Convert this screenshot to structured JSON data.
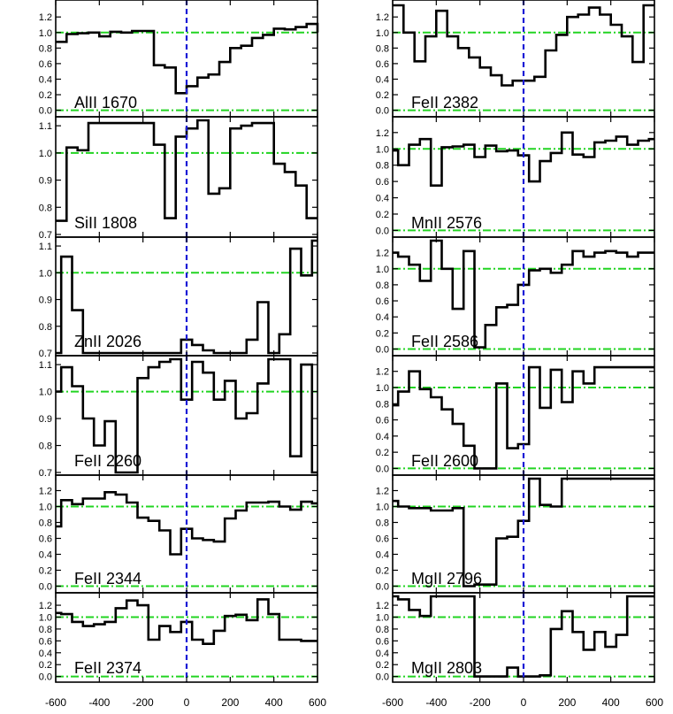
{
  "chart_data": {
    "type": "line",
    "subtype": "step",
    "xlim": [
      -600,
      600
    ],
    "x_ticks": [
      "-600",
      "-400",
      "-200",
      "0",
      "200",
      "400",
      "600"
    ],
    "continuum_level": [
      1.0,
      0.0
    ],
    "zero_velocity_marker": 0,
    "colors": {
      "flux": "#000000",
      "continuum": "#22d422",
      "zero_line": "#1a1ad6"
    },
    "panels": [
      {
        "column": 0,
        "row": 0,
        "label": "AlII 1670",
        "ylim": [
          -0.05,
          1.35
        ],
        "y_ticks": [
          {
            "v": 1.2,
            "t": "1.2"
          },
          {
            "v": 1.0,
            "t": "1.0"
          },
          {
            "v": 0.8,
            "t": "0.8"
          },
          {
            "v": 0.6,
            "t": "0.6"
          },
          {
            "v": 0.4,
            "t": "0.4"
          },
          {
            "v": 0.2,
            "t": "0.2"
          },
          {
            "v": 0.0,
            "t": "0.0"
          }
        ],
        "x": [
          -600,
          -550,
          -500,
          -450,
          -400,
          -350,
          -300,
          -250,
          -200,
          -150,
          -100,
          -50,
          0,
          50,
          100,
          150,
          200,
          250,
          300,
          350,
          400,
          450,
          500,
          550,
          600
        ],
        "y": [
          0.88,
          0.98,
          0.99,
          1.0,
          0.95,
          1.01,
          1.0,
          1.02,
          1.02,
          0.58,
          0.55,
          0.22,
          0.31,
          0.42,
          0.46,
          0.62,
          0.8,
          0.83,
          0.93,
          0.97,
          1.05,
          1.04,
          1.07,
          1.11,
          1.0
        ]
      },
      {
        "column": 0,
        "row": 1,
        "label": "SiII 1808",
        "ylim": [
          0.7,
          1.12
        ],
        "y_ticks": [
          {
            "v": 1.1,
            "t": "1.1"
          },
          {
            "v": 1.0,
            "t": "1.0"
          },
          {
            "v": 0.9,
            "t": "0.9"
          },
          {
            "v": 0.8,
            "t": "0.8"
          },
          {
            "v": 0.7,
            "t": "0.7"
          }
        ],
        "x": [
          -600,
          -575,
          -550,
          -500,
          -450,
          -400,
          -350,
          -300,
          -250,
          -200,
          -150,
          -100,
          -50,
          0,
          50,
          100,
          150,
          200,
          250,
          300,
          350,
          400,
          450,
          500,
          550,
          600
        ],
        "y": [
          0.75,
          0.75,
          1.02,
          1.01,
          1.11,
          1.11,
          1.11,
          1.11,
          1.11,
          1.11,
          1.03,
          0.76,
          1.06,
          1.09,
          1.12,
          0.85,
          0.87,
          1.09,
          1.1,
          1.11,
          1.11,
          0.96,
          0.93,
          0.88,
          0.76,
          0.76
        ]
      },
      {
        "column": 0,
        "row": 2,
        "label": "ZnII 2026",
        "ylim": [
          0.7,
          1.12
        ],
        "y_ticks": [
          {
            "v": 1.1,
            "t": "1.1"
          },
          {
            "v": 1.0,
            "t": "1.0"
          },
          {
            "v": 0.9,
            "t": "0.9"
          },
          {
            "v": 0.8,
            "t": "0.8"
          },
          {
            "v": 0.7,
            "t": "0.7"
          }
        ],
        "x": [
          -600,
          -575,
          -525,
          -475,
          -425,
          -375,
          -325,
          -275,
          -225,
          -175,
          -125,
          -75,
          -25,
          25,
          75,
          125,
          175,
          225,
          275,
          325,
          375,
          425,
          475,
          525,
          575
        ],
        "y": [
          0.7,
          1.06,
          0.86,
          0.7,
          0.7,
          0.7,
          0.7,
          0.7,
          0.7,
          0.7,
          0.7,
          0.7,
          0.75,
          0.73,
          0.71,
          0.7,
          0.7,
          0.7,
          0.75,
          0.89,
          0.7,
          0.77,
          1.09,
          0.99,
          1.12
        ]
      },
      {
        "column": 0,
        "row": 3,
        "label": "FeII 2260",
        "ylim": [
          0.7,
          1.12
        ],
        "y_ticks": [
          {
            "v": 1.1,
            "t": "1.1"
          },
          {
            "v": 1.0,
            "t": "1.0"
          },
          {
            "v": 0.9,
            "t": "0.9"
          },
          {
            "v": 0.8,
            "t": "0.8"
          },
          {
            "v": 0.7,
            "t": "0.7"
          }
        ],
        "x": [
          -600,
          -575,
          -525,
          -475,
          -425,
          -375,
          -325,
          -275,
          -225,
          -175,
          -125,
          -75,
          -25,
          25,
          75,
          125,
          175,
          225,
          275,
          325,
          375,
          425,
          475,
          525,
          575
        ],
        "y": [
          1.0,
          1.09,
          1.02,
          0.9,
          0.8,
          0.89,
          0.7,
          0.7,
          1.05,
          1.09,
          1.11,
          1.12,
          0.97,
          1.11,
          1.07,
          0.97,
          1.04,
          0.9,
          0.92,
          1.03,
          1.12,
          1.12,
          0.76,
          1.1,
          0.7
        ]
      },
      {
        "column": 0,
        "row": 4,
        "label": "FeII 2344",
        "ylim": [
          -0.05,
          1.35
        ],
        "y_ticks": [
          {
            "v": 1.2,
            "t": "1.2"
          },
          {
            "v": 1.0,
            "t": "1.0"
          },
          {
            "v": 0.8,
            "t": "0.8"
          },
          {
            "v": 0.6,
            "t": "0.6"
          },
          {
            "v": 0.4,
            "t": "0.4"
          },
          {
            "v": 0.2,
            "t": "0.2"
          },
          {
            "v": 0.0,
            "t": "0.0"
          }
        ],
        "x": [
          -600,
          -575,
          -525,
          -475,
          -425,
          -375,
          -325,
          -275,
          -225,
          -175,
          -125,
          -75,
          -25,
          25,
          75,
          125,
          175,
          225,
          275,
          325,
          375,
          425,
          475,
          525,
          575
        ],
        "y": [
          0.75,
          1.08,
          1.03,
          1.1,
          1.1,
          1.18,
          1.15,
          1.05,
          0.86,
          0.82,
          0.7,
          0.4,
          0.72,
          0.6,
          0.58,
          0.56,
          0.85,
          0.95,
          1.05,
          1.05,
          1.06,
          1.0,
          0.96,
          1.06,
          1.04
        ]
      },
      {
        "column": 0,
        "row": 5,
        "label": "FeII 2374",
        "ylim": [
          -0.05,
          1.35
        ],
        "y_ticks": [
          {
            "v": 1.2,
            "t": "1.2"
          },
          {
            "v": 1.0,
            "t": "1.0"
          },
          {
            "v": 0.8,
            "t": "0.8"
          },
          {
            "v": 0.6,
            "t": "0.6"
          },
          {
            "v": 0.4,
            "t": "0.4"
          },
          {
            "v": 0.2,
            "t": "0.2"
          },
          {
            "v": 0.0,
            "t": "0.0"
          }
        ],
        "x": [
          -600,
          -575,
          -525,
          -475,
          -425,
          -375,
          -325,
          -275,
          -225,
          -175,
          -125,
          -75,
          -25,
          25,
          75,
          125,
          175,
          225,
          275,
          325,
          375,
          425,
          475,
          525,
          575
        ],
        "y": [
          1.07,
          1.05,
          0.92,
          0.85,
          0.88,
          0.92,
          1.15,
          1.28,
          1.2,
          0.62,
          0.85,
          0.75,
          0.92,
          0.62,
          0.55,
          0.77,
          1.02,
          1.04,
          0.95,
          1.3,
          1.05,
          0.62,
          0.62,
          0.6,
          0.6
        ]
      },
      {
        "column": 1,
        "row": 0,
        "label": "FeII 2382",
        "ylim": [
          -0.05,
          1.35
        ],
        "y_ticks": [
          {
            "v": 1.2,
            "t": "1.2"
          },
          {
            "v": 1.0,
            "t": "1.0"
          },
          {
            "v": 0.8,
            "t": "0.8"
          },
          {
            "v": 0.6,
            "t": "0.6"
          },
          {
            "v": 0.4,
            "t": "0.4"
          },
          {
            "v": 0.2,
            "t": "0.2"
          },
          {
            "v": 0.0,
            "t": "0.0"
          }
        ],
        "x": [
          -600,
          -550,
          -500,
          -450,
          -400,
          -350,
          -300,
          -250,
          -200,
          -150,
          -100,
          -50,
          0,
          50,
          100,
          150,
          200,
          250,
          300,
          350,
          400,
          450,
          500,
          550,
          600
        ],
        "y": [
          1.35,
          1.0,
          0.63,
          0.95,
          1.28,
          0.95,
          0.8,
          0.68,
          0.55,
          0.45,
          0.32,
          0.38,
          0.38,
          0.43,
          0.77,
          0.97,
          1.2,
          1.23,
          1.32,
          1.23,
          1.1,
          0.95,
          0.62,
          1.35,
          1.35
        ]
      },
      {
        "column": 1,
        "row": 1,
        "label": "MnII 2576",
        "ylim": [
          -0.05,
          1.35
        ],
        "y_ticks": [
          {
            "v": 1.2,
            "t": "1.2"
          },
          {
            "v": 1.0,
            "t": "1.0"
          },
          {
            "v": 0.8,
            "t": "0.8"
          },
          {
            "v": 0.6,
            "t": "0.6"
          },
          {
            "v": 0.4,
            "t": "0.4"
          },
          {
            "v": 0.2,
            "t": "0.2"
          },
          {
            "v": 0.0,
            "t": "0.0"
          }
        ],
        "x": [
          -600,
          -575,
          -525,
          -475,
          -425,
          -375,
          -325,
          -275,
          -225,
          -175,
          -125,
          -75,
          -25,
          25,
          75,
          125,
          175,
          225,
          275,
          325,
          375,
          425,
          475,
          525,
          575
        ],
        "y": [
          0.98,
          0.8,
          1.05,
          1.12,
          0.55,
          1.02,
          1.03,
          1.05,
          0.9,
          1.04,
          0.97,
          0.98,
          0.92,
          0.6,
          0.85,
          0.95,
          1.2,
          0.93,
          0.9,
          1.08,
          1.1,
          1.15,
          1.05,
          1.1,
          1.12
        ]
      },
      {
        "column": 1,
        "row": 2,
        "label": "FeII 2586",
        "ylim": [
          -0.05,
          1.35
        ],
        "y_ticks": [
          {
            "v": 1.2,
            "t": "1.2"
          },
          {
            "v": 1.0,
            "t": "1.0"
          },
          {
            "v": 0.8,
            "t": "0.8"
          },
          {
            "v": 0.6,
            "t": "0.6"
          },
          {
            "v": 0.4,
            "t": "0.4"
          },
          {
            "v": 0.2,
            "t": "0.2"
          },
          {
            "v": 0.0,
            "t": "0.0"
          }
        ],
        "x": [
          -600,
          -575,
          -525,
          -475,
          -425,
          -375,
          -325,
          -275,
          -225,
          -175,
          -125,
          -75,
          -25,
          25,
          75,
          125,
          175,
          225,
          275,
          325,
          375,
          425,
          475,
          525,
          575
        ],
        "y": [
          1.2,
          1.15,
          1.05,
          0.85,
          1.35,
          1.0,
          0.5,
          1.22,
          0.02,
          0.3,
          0.52,
          0.55,
          0.8,
          0.98,
          1.0,
          0.95,
          1.05,
          1.22,
          1.15,
          1.2,
          1.22,
          1.2,
          1.15,
          1.2,
          1.2
        ]
      },
      {
        "column": 1,
        "row": 3,
        "label": "FeII 2600",
        "ylim": [
          -0.05,
          1.35
        ],
        "y_ticks": [
          {
            "v": 1.2,
            "t": "1.2"
          },
          {
            "v": 1.0,
            "t": "1.0"
          },
          {
            "v": 0.8,
            "t": "0.8"
          },
          {
            "v": 0.6,
            "t": "0.6"
          },
          {
            "v": 0.4,
            "t": "0.4"
          },
          {
            "v": 0.2,
            "t": "0.2"
          },
          {
            "v": 0.0,
            "t": "0.0"
          }
        ],
        "x": [
          -600,
          -575,
          -525,
          -475,
          -425,
          -375,
          -325,
          -275,
          -225,
          -175,
          -125,
          -75,
          -25,
          25,
          75,
          125,
          175,
          225,
          275,
          325,
          375,
          425,
          475,
          525,
          575
        ],
        "y": [
          0.78,
          0.95,
          1.2,
          0.98,
          0.88,
          0.73,
          0.55,
          0.28,
          0.0,
          0.0,
          1.05,
          0.25,
          0.3,
          1.25,
          0.75,
          1.22,
          0.82,
          1.2,
          1.05,
          1.25,
          1.25,
          1.25,
          1.25,
          1.25,
          1.25
        ]
      },
      {
        "column": 1,
        "row": 4,
        "label": "MgII 2796",
        "ylim": [
          -0.05,
          1.35
        ],
        "y_ticks": [
          {
            "v": 1.2,
            "t": "1.2"
          },
          {
            "v": 1.0,
            "t": "1.0"
          },
          {
            "v": 0.8,
            "t": "0.8"
          },
          {
            "v": 0.6,
            "t": "0.6"
          },
          {
            "v": 0.4,
            "t": "0.4"
          },
          {
            "v": 0.2,
            "t": "0.2"
          },
          {
            "v": 0.0,
            "t": "0.0"
          }
        ],
        "x": [
          -600,
          -575,
          -525,
          -475,
          -425,
          -375,
          -325,
          -275,
          -225,
          -175,
          -125,
          -75,
          -25,
          25,
          75,
          125,
          175,
          225,
          275,
          325,
          375,
          425,
          475,
          525,
          575
        ],
        "y": [
          1.07,
          1.0,
          0.98,
          0.98,
          0.95,
          0.95,
          0.98,
          0.0,
          0.02,
          0.02,
          0.6,
          0.62,
          0.82,
          1.35,
          1.02,
          1.0,
          1.35,
          1.35,
          1.35,
          1.35,
          1.35,
          1.35,
          1.35,
          1.35,
          1.35
        ]
      },
      {
        "column": 1,
        "row": 5,
        "label": "MgII 2803",
        "ylim": [
          -0.05,
          1.35
        ],
        "y_ticks": [
          {
            "v": 1.2,
            "t": "1.2"
          },
          {
            "v": 1.0,
            "t": "1.0"
          },
          {
            "v": 0.8,
            "t": "0.8"
          },
          {
            "v": 0.6,
            "t": "0.6"
          },
          {
            "v": 0.4,
            "t": "0.4"
          },
          {
            "v": 0.2,
            "t": "0.2"
          },
          {
            "v": 0.0,
            "t": "0.0"
          }
        ],
        "x": [
          -600,
          -575,
          -525,
          -475,
          -425,
          -375,
          -325,
          -275,
          -225,
          -175,
          -125,
          -75,
          -25,
          25,
          75,
          125,
          175,
          225,
          275,
          325,
          375,
          425,
          475,
          525,
          575
        ],
        "y": [
          1.35,
          1.3,
          1.12,
          1.02,
          1.35,
          1.35,
          1.35,
          1.35,
          0.0,
          0.0,
          0.0,
          0.15,
          0.0,
          0.0,
          0.02,
          0.8,
          1.1,
          0.75,
          0.45,
          0.75,
          0.5,
          0.7,
          1.35,
          1.35,
          1.35
        ]
      }
    ]
  }
}
